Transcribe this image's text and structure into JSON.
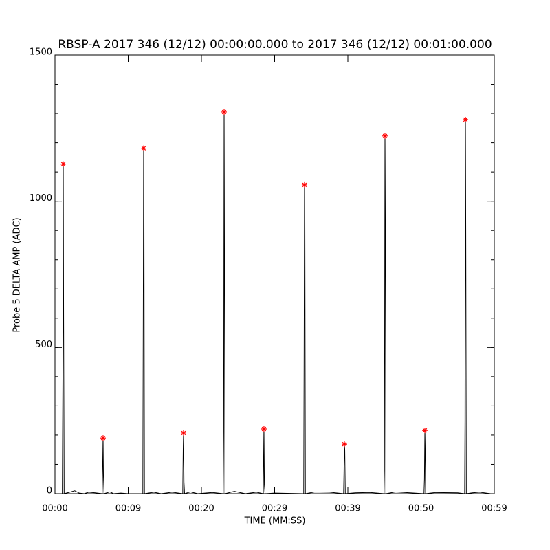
{
  "chart_data": {
    "type": "line",
    "title": "RBSP-A 2017 346 (12/12) 00:00:00.000 to 2017 346 (12/12) 00:01:00.000",
    "xlabel": "TIME (MM:SS)",
    "ylabel": "Probe 5 DELTA AMP (ADC)",
    "xlim": [
      0,
      60
    ],
    "ylim": [
      0,
      1500
    ],
    "xticks": [
      {
        "value": 0,
        "label": "00:00"
      },
      {
        "value": 10,
        "label": "00:09"
      },
      {
        "value": 20,
        "label": "00:20"
      },
      {
        "value": 30,
        "label": "00:29"
      },
      {
        "value": 40,
        "label": "00:39"
      },
      {
        "value": 50,
        "label": "00:50"
      },
      {
        "value": 60,
        "label": "00:59"
      }
    ],
    "yticks": [
      0,
      500,
      1000,
      1500
    ],
    "y_minor_step": 100,
    "series": [
      {
        "style": "line",
        "color": "#000000",
        "x": [
          0,
          1,
          1.08,
          1.13,
          1.18,
          1.25,
          2,
          2.7,
          3.3,
          4,
          4.6,
          5.5,
          6.45,
          6.52,
          6.57,
          6.62,
          6.7,
          7.5,
          8,
          9,
          10,
          12,
          12.06,
          12.11,
          12.16,
          12.22,
          13.5,
          14.5,
          16,
          17.45,
          17.51,
          17.56,
          17.62,
          17.7,
          18.5,
          19.5,
          21.5,
          22.98,
          23.04,
          23.1,
          23.15,
          23.22,
          24.5,
          26,
          27.5,
          28.45,
          28.5,
          28.54,
          28.6,
          28.7,
          30,
          33.97,
          34.02,
          34.08,
          34.13,
          34.2,
          35.5,
          37.5,
          39.42,
          39.47,
          39.53,
          39.58,
          39.65,
          41,
          43,
          44.95,
          45,
          45.07,
          45.12,
          45.2,
          46.5,
          48.5,
          50.4,
          50.46,
          50.52,
          50.56,
          50.62,
          52,
          55,
          55.95,
          56,
          56.06,
          56.11,
          56.18,
          57,
          58,
          59.5
        ],
        "values": [
          0,
          0,
          400,
          1127,
          590,
          0,
          5,
          10,
          2,
          0,
          5,
          3,
          0,
          100,
          190,
          60,
          0,
          6,
          0,
          2,
          0,
          0,
          640,
          1181,
          930,
          0,
          5,
          0,
          5,
          0,
          150,
          207,
          40,
          0,
          6,
          0,
          4,
          0,
          210,
          1305,
          790,
          0,
          8,
          0,
          5,
          0,
          130,
          221,
          30,
          0,
          2,
          0,
          430,
          1056,
          960,
          0,
          6,
          5,
          0,
          70,
          169,
          150,
          0,
          3,
          4,
          0,
          80,
          1223,
          920,
          0,
          6,
          3,
          0,
          50,
          216,
          160,
          0,
          4,
          3,
          0,
          250,
          1279,
          890,
          0,
          3,
          5,
          0
        ]
      },
      {
        "style": "asterisk",
        "color": "#ff0000",
        "x": [
          1.13,
          6.57,
          12.11,
          17.56,
          23.1,
          28.54,
          34.08,
          39.53,
          45.07,
          50.52,
          56.06
        ],
        "values": [
          1127,
          190,
          1181,
          207,
          1305,
          221,
          1056,
          169,
          1223,
          216,
          1279
        ]
      }
    ]
  }
}
